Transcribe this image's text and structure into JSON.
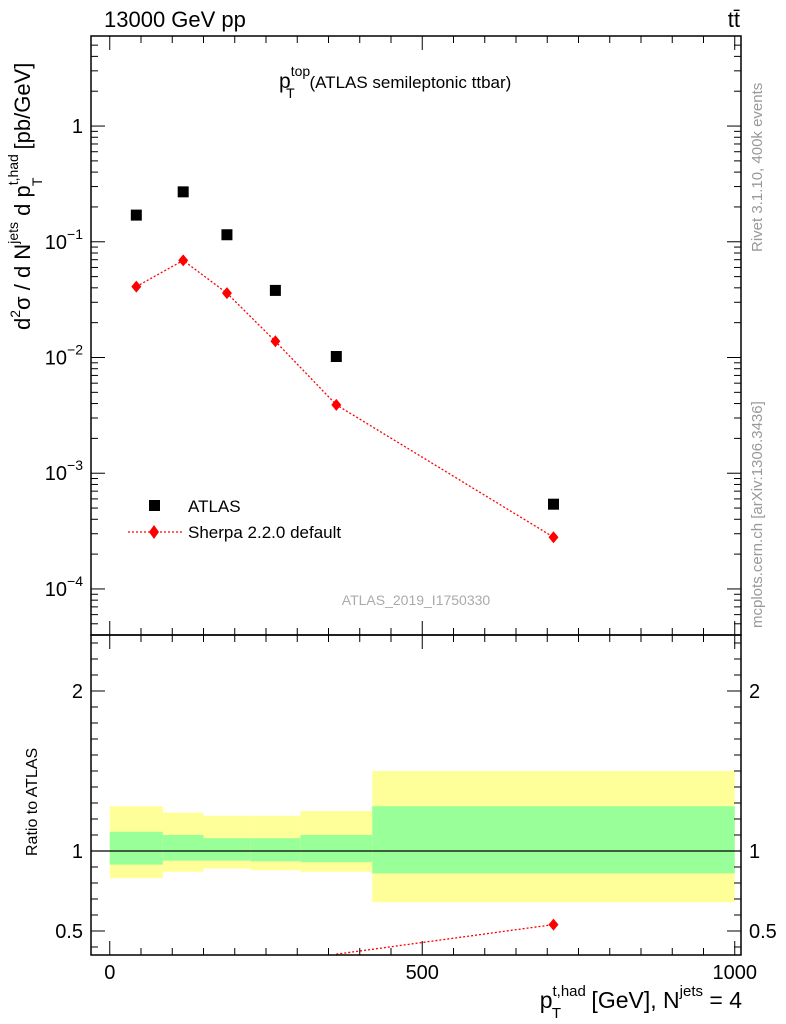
{
  "header": {
    "energy": "13000 GeV pp",
    "process": "tt̄"
  },
  "side_notes": {
    "rivet": "Rivet 3.1.10,  400k events",
    "source": "mcplots.cern.ch [arXiv:1306.3436]"
  },
  "chart_data": [
    {
      "type": "scatter",
      "panel": "main",
      "title_main": "p",
      "title_sup": "top",
      "title_sub": "T",
      "title_rest": " (ATLAS semileptonic ttbar)",
      "ylabel": "d²σ / d N^jets d p_T^t,had [pb/GeV]",
      "yscale": "log",
      "ylim": [
        4e-05,
        6
      ],
      "xlim": [
        -30,
        1010
      ],
      "analysis_label": "ATLAS_2019_I1750330",
      "yticks": [
        {
          "value": 1,
          "base": "1",
          "exp": ""
        },
        {
          "value": 0.1,
          "base": "10",
          "exp": "−1"
        },
        {
          "value": 0.01,
          "base": "10",
          "exp": "−2"
        },
        {
          "value": 0.001,
          "base": "10",
          "exp": "−3"
        },
        {
          "value": 0.0001,
          "base": "10",
          "exp": "−4"
        }
      ],
      "series": [
        {
          "name": "ATLAS",
          "marker": "square",
          "color": "#000000",
          "x": [
            42.5,
            117.5,
            187.5,
            265,
            362.5,
            710
          ],
          "y": [
            0.17,
            0.27,
            0.115,
            0.038,
            0.0102,
            0.00054
          ]
        },
        {
          "name": "Sherpa 2.2.0 default",
          "marker": "diamond",
          "line": "dotted",
          "color": "#ff0000",
          "x": [
            42.5,
            117.5,
            187.5,
            265,
            362.5,
            710
          ],
          "y": [
            0.041,
            0.069,
            0.036,
            0.0138,
            0.0039,
            0.00028
          ]
        }
      ]
    },
    {
      "type": "line",
      "panel": "ratio",
      "ylabel": "Ratio to ATLAS",
      "ylim": [
        0.35,
        2.35
      ],
      "xlim": [
        -30,
        1010
      ],
      "xlabel_base": "p",
      "xlabel_sup": "t,had",
      "xlabel_sub": "T",
      "xlabel_mid": " [GeV], N",
      "xlabel_sup2": "jets",
      "xlabel_tail": " = 4",
      "xticks": [
        {
          "value": 0,
          "label": "0"
        },
        {
          "value": 500,
          "label": "500"
        },
        {
          "value": 1000,
          "label": "1000"
        }
      ],
      "yticks": [
        {
          "value": 0.5,
          "label": "0.5"
        },
        {
          "value": 1,
          "label": "1"
        },
        {
          "value": 2,
          "label": "2"
        }
      ],
      "bands": [
        {
          "x0": 0,
          "x1": 85,
          "stat_lo": 0.915,
          "stat_hi": 1.12,
          "tot_lo": 0.83,
          "tot_hi": 1.28
        },
        {
          "x0": 85,
          "x1": 150,
          "stat_lo": 0.94,
          "stat_hi": 1.1,
          "tot_lo": 0.87,
          "tot_hi": 1.24
        },
        {
          "x0": 150,
          "x1": 225,
          "stat_lo": 0.94,
          "stat_hi": 1.08,
          "tot_lo": 0.89,
          "tot_hi": 1.22
        },
        {
          "x0": 225,
          "x1": 305,
          "stat_lo": 0.935,
          "stat_hi": 1.08,
          "tot_lo": 0.88,
          "tot_hi": 1.22
        },
        {
          "x0": 305,
          "x1": 420,
          "stat_lo": 0.93,
          "stat_hi": 1.1,
          "tot_lo": 0.87,
          "tot_hi": 1.25
        },
        {
          "x0": 420,
          "x1": 1000,
          "stat_lo": 0.86,
          "stat_hi": 1.28,
          "tot_lo": 0.68,
          "tot_hi": 1.5
        }
      ],
      "series": [
        {
          "name": "Sherpa 2.2.0 default / ATLAS",
          "color": "#ff0000",
          "x": [
            362.5,
            710
          ],
          "y": [
            0.355,
            0.54
          ],
          "yerr": [
            0,
            0.03
          ],
          "visible_points": [
            710
          ]
        }
      ]
    }
  ]
}
